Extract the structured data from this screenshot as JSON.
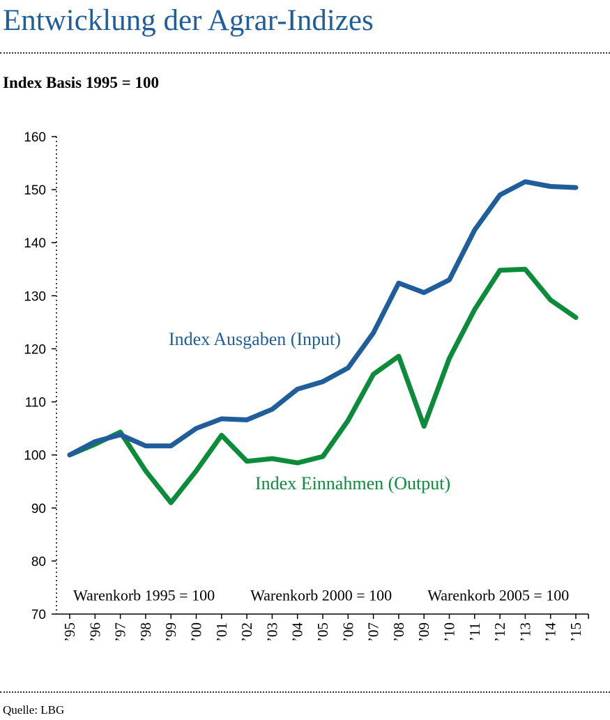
{
  "page": {
    "title": "Entwicklung der Agrar-Indizes",
    "subtitle": "Index Basis 1995 = 100",
    "source": "Quelle: LBG"
  },
  "chart_data": {
    "type": "line",
    "title": "Entwicklung der Agrar-Indizes",
    "subtitle": "Index Basis 1995 = 100",
    "xlabel": "",
    "ylabel": "",
    "categories": [
      "’95",
      "’96",
      "’97",
      "’98",
      "’99",
      "’00",
      "’01",
      "’02",
      "’03",
      "’04",
      "’05",
      "’06",
      "’07",
      "’08",
      "’09",
      "’10",
      "’11",
      "’12",
      "’13",
      "’14",
      "’15"
    ],
    "ylim": [
      70,
      160
    ],
    "yticks": [
      70,
      80,
      90,
      100,
      110,
      120,
      130,
      140,
      150,
      160
    ],
    "grid": false,
    "legend": "inline labels",
    "series": [
      {
        "name": "Index Ausgaben (Input)",
        "color": "#1f5e9a",
        "values": [
          100.0,
          102.5,
          103.8,
          101.7,
          101.7,
          105.0,
          106.8,
          106.6,
          108.6,
          112.4,
          113.8,
          116.4,
          123.0,
          132.4,
          130.6,
          133.0,
          142.4,
          149.0,
          151.5,
          150.6,
          150.4
        ]
      },
      {
        "name": "Index Einnahmen (Output)",
        "color": "#0c8b3b",
        "values": [
          100.0,
          102.0,
          104.3,
          97.0,
          91.0,
          97.0,
          103.7,
          98.8,
          99.3,
          98.5,
          99.7,
          106.5,
          115.2,
          118.6,
          105.4,
          118.2,
          127.4,
          134.8,
          135.0,
          129.2,
          125.9
        ]
      }
    ],
    "annotations": [
      {
        "text": "Warenkorb 1995 = 100",
        "at_index": 0,
        "y": 73.5
      },
      {
        "text": "Warenkorb 2000 = 100",
        "at_index": 7,
        "y": 73.5
      },
      {
        "text": "Warenkorb 2005 = 100",
        "at_index": 14,
        "y": 73.5
      }
    ]
  }
}
